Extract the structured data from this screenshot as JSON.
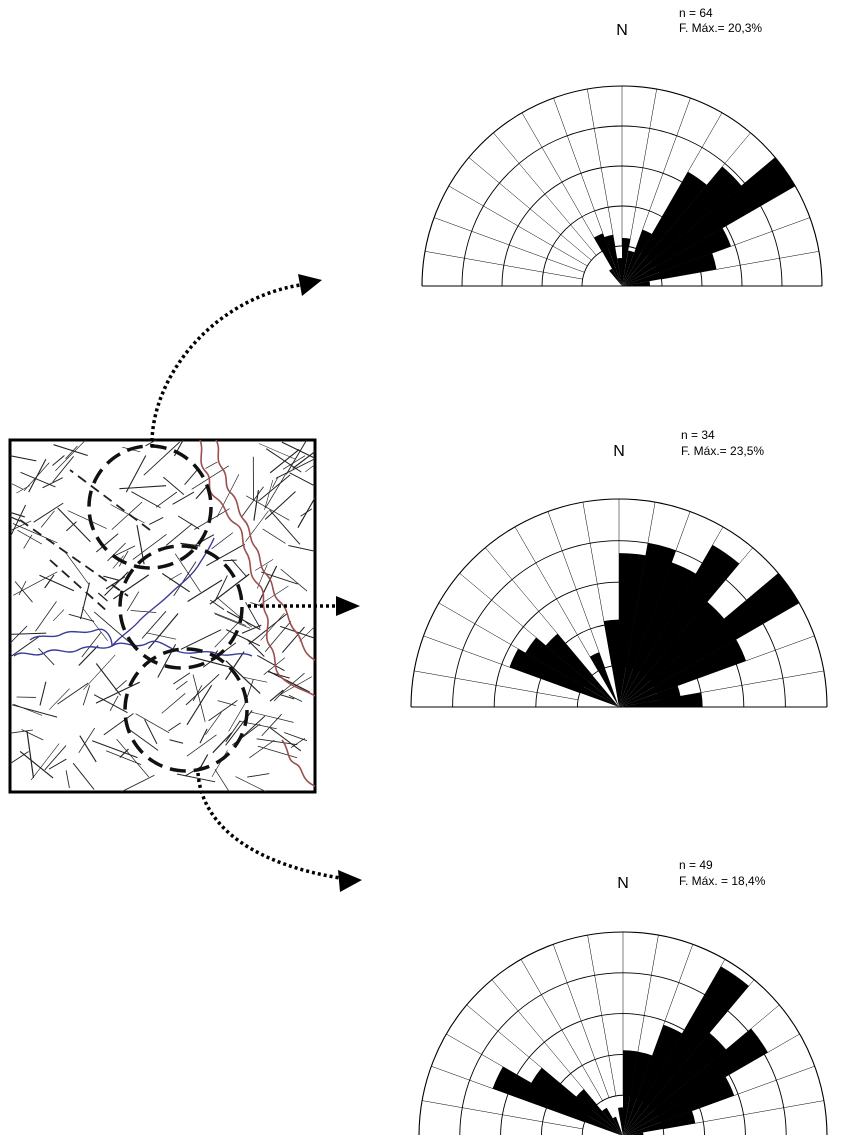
{
  "diagrams": [
    {
      "id": "top",
      "north_label": "N",
      "n_label": "n = 64",
      "fmax_label": "F. Máx.= 20,3%",
      "petals": [
        {
          "az": 5,
          "r": 0.24
        },
        {
          "az": 15,
          "r": 0.18
        },
        {
          "az": 25,
          "r": 0.3
        },
        {
          "az": 35,
          "r": 0.66
        },
        {
          "az": 45,
          "r": 0.78
        },
        {
          "az": 55,
          "r": 1.0
        },
        {
          "az": 65,
          "r": 0.58
        },
        {
          "az": 75,
          "r": 0.48
        },
        {
          "az": 85,
          "r": 0.14
        },
        {
          "az": 325,
          "r": 0.1
        },
        {
          "az": 335,
          "r": 0.28
        },
        {
          "az": 345,
          "r": 0.26
        },
        {
          "az": 355,
          "r": 0.14
        }
      ]
    },
    {
      "id": "middle",
      "north_label": "N",
      "n_label": "n = 34",
      "fmax_label": "F. Máx.= 23,5%",
      "petals": [
        {
          "az": 5,
          "r": 0.74
        },
        {
          "az": 15,
          "r": 0.8
        },
        {
          "az": 25,
          "r": 0.74
        },
        {
          "az": 35,
          "r": 0.9
        },
        {
          "az": 45,
          "r": 0.66
        },
        {
          "az": 55,
          "r": 1.0
        },
        {
          "az": 65,
          "r": 0.65
        },
        {
          "az": 75,
          "r": 0.3
        },
        {
          "az": 85,
          "r": 0.4
        },
        {
          "az": 295,
          "r": 0.56
        },
        {
          "az": 305,
          "r": 0.52
        },
        {
          "az": 315,
          "r": 0.46
        },
        {
          "az": 335,
          "r": 0.28
        },
        {
          "az": 355,
          "r": 0.42
        }
      ]
    },
    {
      "id": "bottom",
      "north_label": "N",
      "n_label": "n = 49",
      "fmax_label": "F. Máx. = 18,4%",
      "petals": [
        {
          "az": 5,
          "r": 0.42
        },
        {
          "az": 15,
          "r": 0.42
        },
        {
          "az": 25,
          "r": 0.58
        },
        {
          "az": 35,
          "r": 0.96
        },
        {
          "az": 45,
          "r": 0.66
        },
        {
          "az": 55,
          "r": 0.82
        },
        {
          "az": 65,
          "r": 0.58
        },
        {
          "az": 75,
          "r": 0.36
        },
        {
          "az": 85,
          "r": 0.1
        },
        {
          "az": 295,
          "r": 0.68
        },
        {
          "az": 305,
          "r": 0.52
        },
        {
          "az": 315,
          "r": 0.3
        },
        {
          "az": 325,
          "r": 0.16
        },
        {
          "az": 335,
          "r": 0.1
        },
        {
          "az": 355,
          "r": 0.14
        }
      ]
    }
  ],
  "map": {
    "lineament_color": "#222222",
    "drainage_color": "#3b3b9b",
    "contour_color": "#9a5050",
    "circle_color": "#111111"
  },
  "colors": {
    "petal_fill": "#000000",
    "grid_color": "#000000",
    "background": "#ffffff"
  }
}
